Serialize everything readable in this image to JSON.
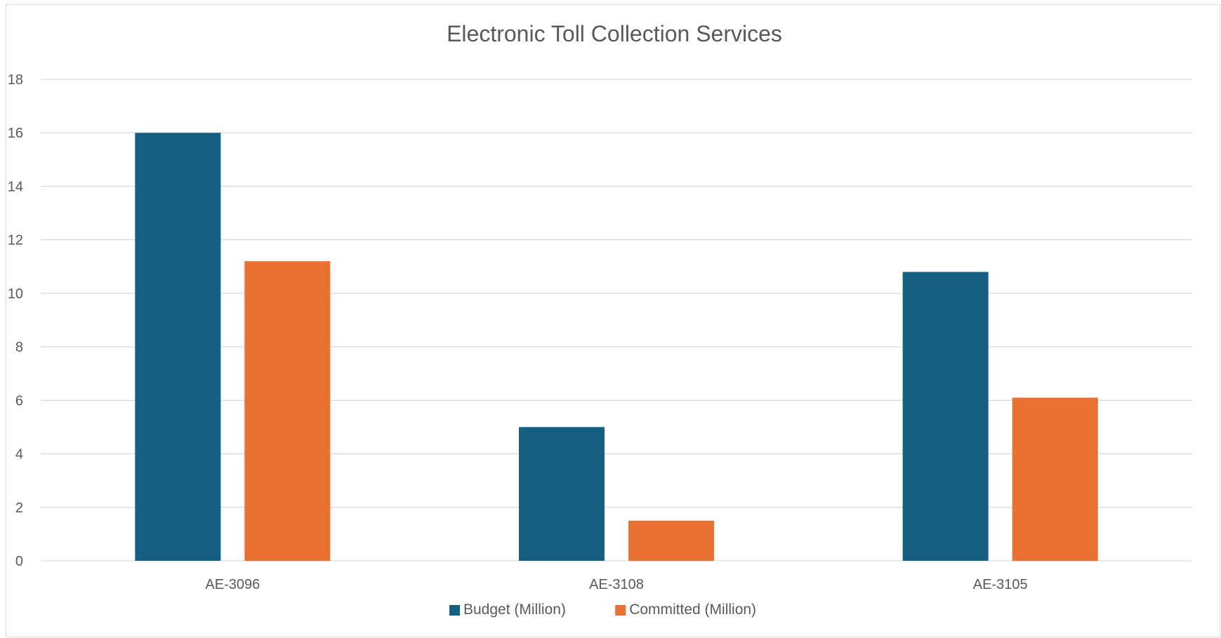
{
  "chart_data": {
    "type": "bar",
    "title": "Electronic Toll Collection Services",
    "categories": [
      "AE-3096",
      "AE-3108",
      "AE-3105"
    ],
    "series": [
      {
        "name": "Budget (Million)",
        "values": [
          16,
          5,
          10.8
        ],
        "color": "#156082"
      },
      {
        "name": "Committed (Million)",
        "values": [
          11.2,
          1.5,
          6.1
        ],
        "color": "#E97132"
      }
    ],
    "xlabel": "",
    "ylabel": "",
    "ylim": [
      0,
      18
    ],
    "yticks": [
      0,
      2,
      4,
      6,
      8,
      10,
      12,
      14,
      16,
      18
    ],
    "grid": true,
    "legend": "bottom"
  }
}
